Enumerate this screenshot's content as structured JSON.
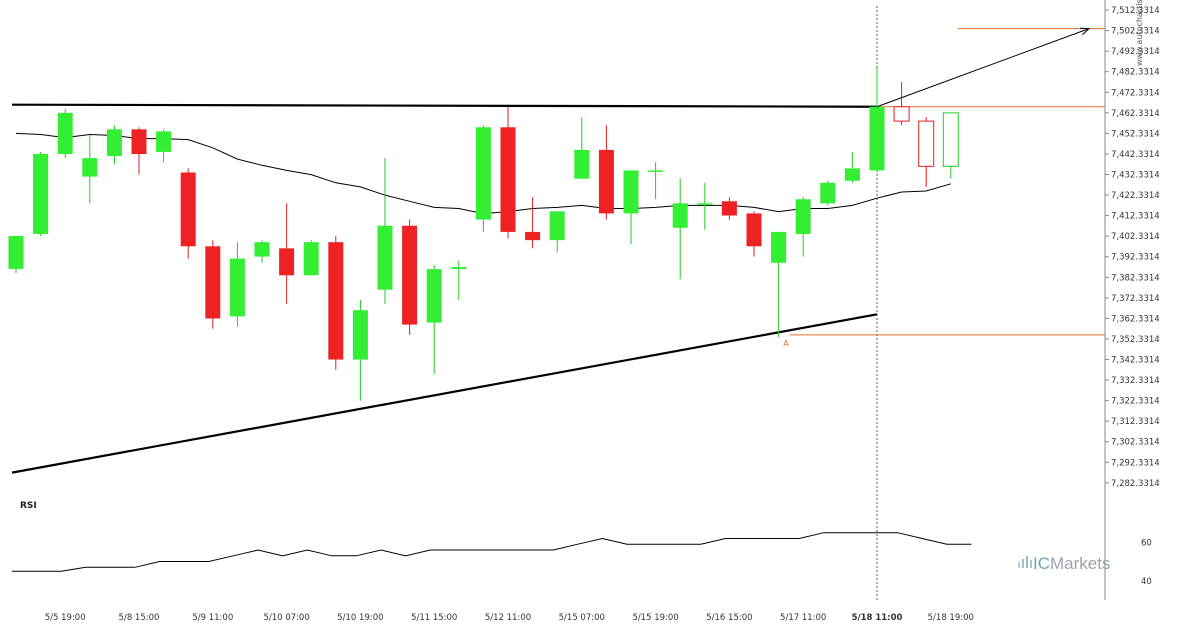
{
  "credit": "www.autochartist.com",
  "brand": {
    "prefix": "IC",
    "suffix": "Markets",
    "colors": {
      "prefix": "#6ea6b8",
      "suffix": "#9aa3aa"
    }
  },
  "colors": {
    "bull": "#33ee33",
    "bear": "#ee2222",
    "bull_outline": "#22cc22",
    "bear_outline": "#dd2222",
    "level": "#e07020",
    "trend": "#000000"
  },
  "chart_data": [
    {
      "type": "candlestick",
      "title": "",
      "x_labels": [
        "5/5 19:00",
        "5/8 15:00",
        "5/9 11:00",
        "5/10 07:00",
        "5/10 19:00",
        "5/11 15:00",
        "5/12 11:00",
        "5/15 07:00",
        "5/15 19:00",
        "5/16 15:00",
        "5/17 11:00",
        "5/18 11:00",
        "5/18 19:00"
      ],
      "y_ticks": [
        "7,512.3314",
        "7,502.3314",
        "7,492.3314",
        "7,482.3314",
        "7,472.3314",
        "7,462.3314",
        "7,452.3314",
        "7,442.3314",
        "7,432.3314",
        "7,422.3314",
        "7,412.3314",
        "7,402.3314",
        "7,392.3314",
        "7,382.3314",
        "7,372.3314",
        "7,362.3314",
        "7,352.3314",
        "7,342.3314",
        "7,332.3314",
        "7,322.3314",
        "7,312.3314",
        "7,302.3314",
        "7,292.3314",
        "7,282.3314"
      ],
      "ylim": [
        7280.3,
        7514.3
      ],
      "candles": [
        {
          "o": 7386.4,
          "h": 7402.4,
          "l": 7384.3,
          "c": 7402.4
        },
        {
          "o": 7403.4,
          "h": 7443.3,
          "l": 7402.4,
          "c": 7442.3
        },
        {
          "o": 7442.3,
          "h": 7464.3,
          "l": 7440.3,
          "c": 7462.3
        },
        {
          "o": 7431.3,
          "h": 7451.3,
          "l": 7418.3,
          "c": 7440.3
        },
        {
          "o": 7441.3,
          "h": 7456.3,
          "l": 7437.3,
          "c": 7454.3
        },
        {
          "o": 7454.3,
          "h": 7455.3,
          "l": 7432.3,
          "c": 7442.3
        },
        {
          "o": 7443.3,
          "h": 7454.3,
          "l": 7438.3,
          "c": 7453.3
        },
        {
          "o": 7433.3,
          "h": 7435.3,
          "l": 7391.4,
          "c": 7397.4
        },
        {
          "o": 7397.4,
          "h": 7400.4,
          "l": 7357.3,
          "c": 7362.3
        },
        {
          "o": 7363.3,
          "h": 7399.4,
          "l": 7358.3,
          "c": 7391.4
        },
        {
          "o": 7392.4,
          "h": 7400.4,
          "l": 7389.4,
          "c": 7399.4
        },
        {
          "o": 7396.4,
          "h": 7418.3,
          "l": 7369.3,
          "c": 7383.3
        },
        {
          "o": 7383.3,
          "h": 7400.4,
          "l": 7383.3,
          "c": 7399.4
        },
        {
          "o": 7399.4,
          "h": 7402.4,
          "l": 7337.3,
          "c": 7342.3
        },
        {
          "o": 7342.3,
          "h": 7371.3,
          "l": 7322.3,
          "c": 7366.3
        },
        {
          "o": 7376.3,
          "h": 7440.3,
          "l": 7369.3,
          "c": 7407.4
        },
        {
          "o": 7407.4,
          "h": 7410.4,
          "l": 7354.3,
          "c": 7359.3
        },
        {
          "o": 7360.3,
          "h": 7388.3,
          "l": 7335.3,
          "c": 7386.3
        },
        {
          "o": 7386.3,
          "h": 7390.3,
          "l": 7371.3,
          "c": 7387.3
        },
        {
          "o": 7410.4,
          "h": 7456.3,
          "l": 7404.4,
          "c": 7455.3
        },
        {
          "o": 7455.3,
          "h": 7465.3,
          "l": 7401.4,
          "c": 7404.4
        },
        {
          "o": 7404.4,
          "h": 7421.3,
          "l": 7396.4,
          "c": 7400.4
        },
        {
          "o": 7400.4,
          "h": 7414.4,
          "l": 7394.4,
          "c": 7414.4
        },
        {
          "o": 7430.3,
          "h": 7460.3,
          "l": 7430.3,
          "c": 7444.3
        },
        {
          "o": 7444.3,
          "h": 7456.3,
          "l": 7410.4,
          "c": 7413.4
        },
        {
          "o": 7413.4,
          "h": 7434.3,
          "l": 7398.4,
          "c": 7434.3
        },
        {
          "o": 7434.3,
          "h": 7438.3,
          "l": 7420.3,
          "c": 7434.3
        },
        {
          "o": 7406.4,
          "h": 7430.3,
          "l": 7381.3,
          "c": 7418.3
        },
        {
          "o": 7418.3,
          "h": 7428.3,
          "l": 7405.4,
          "c": 7418.3
        },
        {
          "o": 7419.3,
          "h": 7421.3,
          "l": 7410.4,
          "c": 7412.4
        },
        {
          "o": 7413.4,
          "h": 7414.4,
          "l": 7392.4,
          "c": 7397.4
        },
        {
          "o": 7389.4,
          "h": 7404.4,
          "l": 7353.3,
          "c": 7404.4
        },
        {
          "o": 7403.4,
          "h": 7421.3,
          "l": 7392.4,
          "c": 7420.3
        },
        {
          "o": 7418.3,
          "h": 7429.3,
          "l": 7417.3,
          "c": 7428.3
        },
        {
          "o": 7429.3,
          "h": 7443.3,
          "l": 7428.3,
          "c": 7435.3
        },
        {
          "o": 7434.3,
          "h": 7484.3,
          "l": 7433.3,
          "c": 7465.3
        },
        {
          "o": 7465.3,
          "h": 7477.3,
          "l": 7456.3,
          "c": 7458.3
        },
        {
          "o": 7458.3,
          "h": 7460.3,
          "l": 7426.3,
          "c": 7436.3
        },
        {
          "o": 7436.3,
          "h": 7462.3,
          "l": 7430.3,
          "c": 7462.3
        }
      ],
      "moving_average": [
        7452.3,
        7451.8,
        7450.3,
        7451.8,
        7451.3,
        7449.8,
        7449.8,
        7449.3,
        7445.3,
        7439.8,
        7436.8,
        7434.3,
        7432.3,
        7428.3,
        7426.3,
        7422.3,
        7419.3,
        7416.3,
        7415.8,
        7413.3,
        7414.3,
        7415.8,
        7416.3,
        7417.3,
        7415.8,
        7415.8,
        7416.3,
        7417.3,
        7417.3,
        7417.3,
        7416.3,
        7414.3,
        7415.8,
        7415.8,
        7417.3,
        7420.8,
        7423.8,
        7424.3,
        7427.8
      ],
      "resistance_level": 7465.3,
      "upper_trendline": {
        "start": 7466.3,
        "end": 7465.3
      },
      "lower_trendline": {
        "start": 7287.3,
        "end": 7364.3
      },
      "target_level": 7503.3,
      "point_A_level": 7354.3,
      "point_A_label": "A",
      "annotation_level": 7465.3,
      "forecast_arrow": {
        "from": 7465.3,
        "to": 7503.3
      }
    },
    {
      "type": "line",
      "title": "RSI",
      "y_ticks": [
        "60",
        "40"
      ],
      "ylim": [
        30,
        82
      ],
      "values": [
        45,
        45,
        45,
        47,
        47,
        47,
        50,
        50,
        50,
        53,
        56,
        53,
        56,
        53,
        53,
        56,
        53,
        56,
        56,
        56,
        56,
        56,
        56,
        59,
        62,
        59,
        59,
        59,
        59,
        62,
        62,
        62,
        62,
        65,
        65,
        65,
        65,
        62,
        59,
        59
      ]
    }
  ]
}
